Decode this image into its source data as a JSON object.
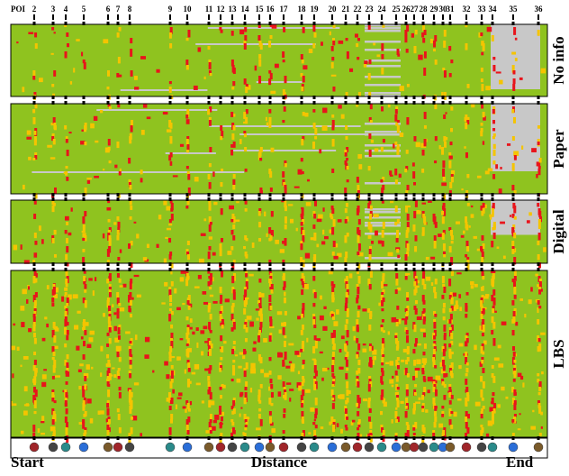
{
  "chart_data": {
    "type": "heatmap",
    "poi_title": "POI",
    "categories": [
      "2",
      "3",
      "4",
      "5",
      "6",
      "7",
      "8",
      "9",
      "10",
      "11",
      "12",
      "13",
      "14",
      "15",
      "16",
      "17",
      "18",
      "19",
      "20",
      "21",
      "22",
      "23",
      "24",
      "25",
      "26",
      "27",
      "28",
      "29",
      "30",
      "31",
      "32",
      "33",
      "34",
      "35",
      "36"
    ],
    "panels": [
      "No info",
      "Paper",
      "Digital",
      "LBS"
    ],
    "x_labels": {
      "start": "Start",
      "middle": "Distance",
      "end": "End"
    },
    "colors": {
      "base": "#8fc31f",
      "missing": "#c8c8c8",
      "low": "#f5c400",
      "high": "#e8141b"
    }
  }
}
